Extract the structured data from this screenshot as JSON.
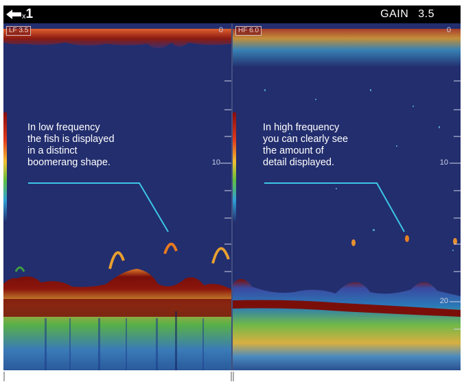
{
  "header": {
    "back_icon": "arrow-left-icon",
    "zoom_prefix": "x",
    "zoom_value": "1",
    "gain_label": "GAIN",
    "gain_value": "3.5"
  },
  "left_pane": {
    "mode_label": "LF 3.5",
    "depth_top": "0",
    "depth_mid": "10",
    "annotation": [
      "In low frequency",
      "the fish is displayed",
      "in a distinct",
      "boomerang shape."
    ]
  },
  "right_pane": {
    "mode_label": "HF 6.0",
    "depth_top": "0",
    "depth_mid": "10",
    "depth_bottom": "20",
    "annotation": [
      "In high frequency",
      "you can clearly see",
      "the amount of",
      "detail displayed."
    ]
  },
  "colors": {
    "water": "#232e6e",
    "callout_line": "#3cc7e6",
    "strong_echo": "#7a0f0a"
  }
}
